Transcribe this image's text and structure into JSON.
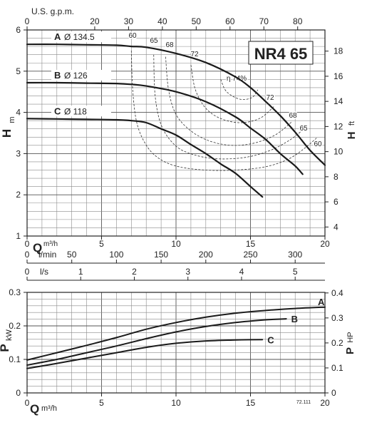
{
  "chart_data": [
    {
      "type": "line",
      "model_label": "NR4 65",
      "xlabel": "Q",
      "xlabel_unit": "m³/h",
      "ylabel_left": "H",
      "ylabel_left_unit": "m",
      "ylabel_right": "H",
      "ylabel_right_unit": "ft",
      "xlim": [
        0,
        20
      ],
      "ylim": [
        1,
        6
      ],
      "x_ticks": [
        "0",
        "5",
        "10",
        "15",
        "20"
      ],
      "y_ticks": [
        "1",
        "2",
        "3",
        "4",
        "5",
        "6"
      ],
      "top_axis": {
        "label": "U.S. g.p.m.",
        "ticks": [
          "0",
          "20",
          "30",
          "40",
          "50",
          "60",
          "70",
          "80"
        ],
        "values": [
          0,
          20,
          30,
          40,
          50,
          60,
          70,
          80
        ]
      },
      "right_axis_ft": {
        "ticks": [
          "4",
          "6",
          "8",
          "10",
          "12",
          "14",
          "16",
          "18"
        ],
        "values": [
          4,
          6,
          8,
          10,
          12,
          14,
          16,
          18
        ]
      },
      "lmin_axis": {
        "label": "l/min",
        "ticks": [
          "0",
          "50",
          "100",
          "150",
          "200",
          "250",
          "300"
        ],
        "values": [
          0,
          50,
          100,
          150,
          200,
          250,
          300
        ]
      },
      "ls_axis": {
        "label": "l/s",
        "ticks": [
          "0",
          "1",
          "2",
          "3",
          "4",
          "5"
        ],
        "values": [
          0,
          1,
          2,
          3,
          4,
          5
        ]
      },
      "series": [
        {
          "name": "A",
          "label": "Ø 134.5",
          "x": [
            0,
            2,
            4,
            6,
            7,
            8,
            10,
            12,
            14,
            15,
            16,
            17,
            18,
            19,
            20
          ],
          "y": [
            5.65,
            5.65,
            5.64,
            5.63,
            5.6,
            5.58,
            5.43,
            5.21,
            4.86,
            4.6,
            4.27,
            3.92,
            3.52,
            3.08,
            2.72
          ]
        },
        {
          "name": "B",
          "label": "Ø 126",
          "x": [
            0,
            2,
            4,
            6,
            7,
            8,
            10,
            12,
            14,
            15,
            16,
            17,
            18,
            18.5
          ],
          "y": [
            4.72,
            4.72,
            4.71,
            4.7,
            4.68,
            4.64,
            4.5,
            4.26,
            3.89,
            3.62,
            3.35,
            3.0,
            2.7,
            2.5
          ]
        },
        {
          "name": "C",
          "label": "Ø 118",
          "x": [
            0,
            2,
            4,
            6,
            7,
            8,
            9,
            10,
            11,
            12,
            13,
            14,
            15,
            15.8
          ],
          "y": [
            3.85,
            3.84,
            3.83,
            3.82,
            3.8,
            3.75,
            3.6,
            3.45,
            3.22,
            3.0,
            2.75,
            2.52,
            2.2,
            1.95
          ]
        }
      ],
      "efficiency_curves": [
        {
          "label": "60",
          "x": [
            7.0,
            7.1,
            7.4,
            8.1,
            9.0,
            10.2,
            12.0,
            14.0,
            16.0,
            17.5,
            18.6,
            19.5
          ],
          "y": [
            5.5,
            4.5,
            3.7,
            3.15,
            2.85,
            2.68,
            2.6,
            2.6,
            2.68,
            2.86,
            3.12,
            3.4
          ]
        },
        {
          "label": "65",
          "x": [
            8.5,
            8.6,
            9.0,
            9.8,
            10.8,
            12.5,
            14.5,
            16.2,
            17.6,
            18.6
          ],
          "y": [
            5.4,
            4.4,
            3.7,
            3.25,
            3.02,
            2.88,
            2.9,
            3.06,
            3.32,
            3.6
          ]
        },
        {
          "label": "68",
          "x": [
            9.3,
            9.5,
            10.0,
            11.0,
            12.3,
            13.8,
            15.3,
            16.7,
            17.8
          ],
          "y": [
            5.35,
            4.55,
            3.95,
            3.55,
            3.3,
            3.2,
            3.26,
            3.46,
            3.78
          ]
        },
        {
          "label": "72",
          "x": [
            11.0,
            11.3,
            12.0,
            13.0,
            14.3,
            15.6,
            16.6
          ],
          "y": [
            5.15,
            4.55,
            4.1,
            3.85,
            3.75,
            3.85,
            4.15
          ]
        },
        {
          "label": "η 74%",
          "x": [
            13.0,
            13.4,
            14.3,
            15.1,
            15.5
          ],
          "y": [
            4.8,
            4.5,
            4.32,
            4.36,
            4.55
          ]
        }
      ]
    },
    {
      "type": "line",
      "xlabel": "Q",
      "xlabel_unit": "m³/h",
      "ylabel_left": "P",
      "ylabel_left_unit": "kW",
      "ylabel_right": "P",
      "ylabel_right_unit": "HP",
      "xlim": [
        0,
        20
      ],
      "ylim": [
        0,
        0.3
      ],
      "x_ticks": [
        "0",
        "5",
        "10",
        "15",
        "20"
      ],
      "y_ticks": [
        "0",
        "0.1",
        "0.2",
        "0.3"
      ],
      "right_axis_hp": {
        "ticks": [
          "0",
          "0.1",
          "0.2",
          "0.3",
          "0.4"
        ],
        "values": [
          0,
          0.1,
          0.2,
          0.3,
          0.4
        ]
      },
      "series": [
        {
          "name": "A",
          "x": [
            0,
            2,
            4,
            6,
            8,
            10,
            12,
            14,
            16,
            18,
            20
          ],
          "y": [
            0.098,
            0.12,
            0.142,
            0.165,
            0.19,
            0.21,
            0.226,
            0.238,
            0.246,
            0.252,
            0.256
          ]
        },
        {
          "name": "B",
          "x": [
            0,
            2,
            4,
            6,
            8,
            10,
            12,
            14,
            16,
            17.4
          ],
          "y": [
            0.083,
            0.1,
            0.12,
            0.14,
            0.162,
            0.182,
            0.198,
            0.21,
            0.218,
            0.221
          ]
        },
        {
          "name": "C",
          "x": [
            0,
            2,
            4,
            6,
            8,
            10,
            12,
            14,
            15.8
          ],
          "y": [
            0.073,
            0.088,
            0.104,
            0.12,
            0.136,
            0.148,
            0.155,
            0.158,
            0.159
          ]
        }
      ],
      "footnote": "72.111"
    }
  ]
}
